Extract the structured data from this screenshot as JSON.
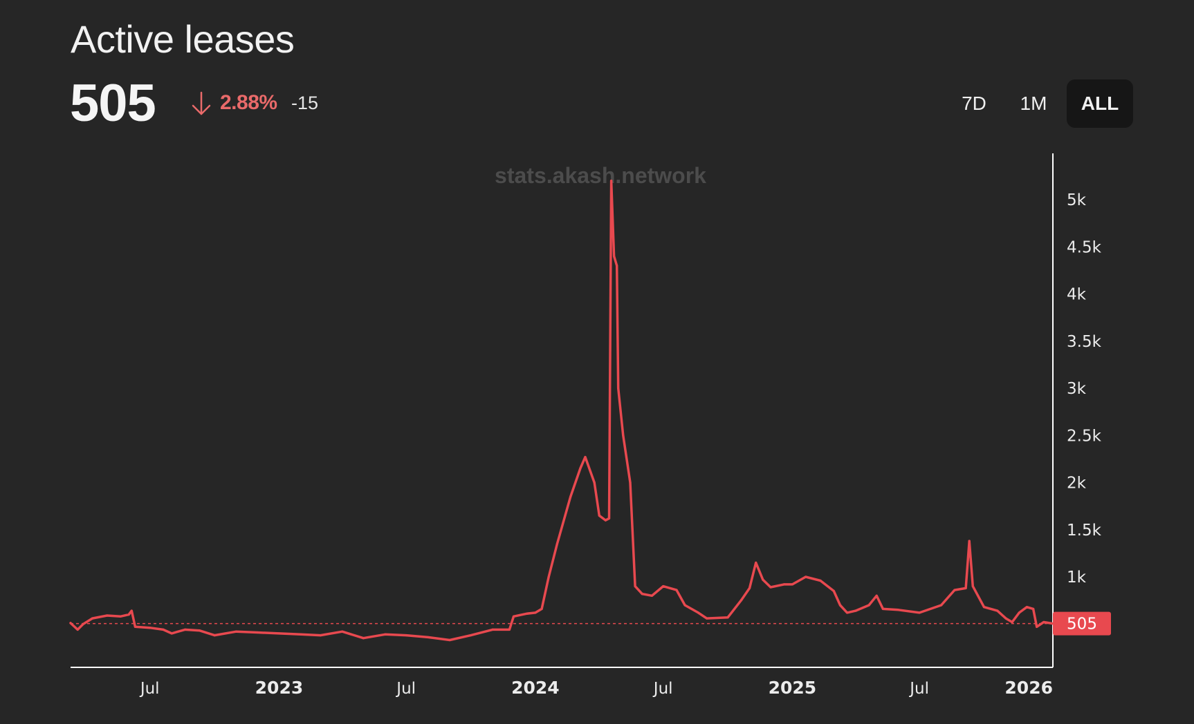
{
  "header": {
    "title": "Active leases",
    "value": "505",
    "delta_pct": "2.88%",
    "delta_abs": "-15",
    "delta_direction": "down"
  },
  "ranges": [
    {
      "label": "7D",
      "active": false
    },
    {
      "label": "1M",
      "active": false
    },
    {
      "label": "ALL",
      "active": true
    }
  ],
  "watermark": "stats.akash.network",
  "colors": {
    "background": "#262626",
    "line": "#e8494f",
    "delta": "#e96a6a",
    "badge": "#e8494f"
  },
  "chart_data": {
    "type": "line",
    "title": "",
    "xlabel": "",
    "ylabel": "",
    "ylim": [
      0,
      5400
    ],
    "y_ticks": [
      {
        "value": 1000,
        "label": "1k"
      },
      {
        "value": 1500,
        "label": "1.5k"
      },
      {
        "value": 2000,
        "label": "2k"
      },
      {
        "value": 2500,
        "label": "2.5k"
      },
      {
        "value": 3000,
        "label": "3k"
      },
      {
        "value": 3500,
        "label": "3.5k"
      },
      {
        "value": 4000,
        "label": "4k"
      },
      {
        "value": 4500,
        "label": "4.5k"
      },
      {
        "value": 5000,
        "label": "5k"
      }
    ],
    "x_ticks": [
      {
        "date": "2022-07-01",
        "label": "Jul",
        "major": false
      },
      {
        "date": "2023-01-01",
        "label": "2023",
        "major": true
      },
      {
        "date": "2023-07-01",
        "label": "Jul",
        "major": false
      },
      {
        "date": "2024-01-01",
        "label": "2024",
        "major": true
      },
      {
        "date": "2024-07-01",
        "label": "Jul",
        "major": false
      },
      {
        "date": "2025-01-01",
        "label": "2025",
        "major": true
      },
      {
        "date": "2025-07-01",
        "label": "Jul",
        "major": false
      },
      {
        "date": "2026-01-01",
        "label": "2026",
        "major": true
      }
    ],
    "x_range": [
      "2022-03-10",
      "2026-01-07"
    ],
    "last_value": 505,
    "last_value_label": "505",
    "reference_line": 505,
    "grid": false,
    "series": [
      {
        "points": [
          [
            "2022-03-10",
            510
          ],
          [
            "2022-03-20",
            440
          ],
          [
            "2022-03-28",
            500
          ],
          [
            "2022-04-10",
            560
          ],
          [
            "2022-05-01",
            590
          ],
          [
            "2022-05-20",
            580
          ],
          [
            "2022-06-01",
            600
          ],
          [
            "2022-06-05",
            640
          ],
          [
            "2022-06-10",
            470
          ],
          [
            "2022-07-01",
            460
          ],
          [
            "2022-07-20",
            440
          ],
          [
            "2022-08-01",
            400
          ],
          [
            "2022-08-20",
            440
          ],
          [
            "2022-09-10",
            430
          ],
          [
            "2022-10-01",
            380
          ],
          [
            "2022-11-01",
            420
          ],
          [
            "2022-12-01",
            410
          ],
          [
            "2023-01-01",
            400
          ],
          [
            "2023-02-01",
            390
          ],
          [
            "2023-03-01",
            380
          ],
          [
            "2023-04-01",
            420
          ],
          [
            "2023-05-01",
            350
          ],
          [
            "2023-06-01",
            390
          ],
          [
            "2023-07-01",
            380
          ],
          [
            "2023-08-01",
            360
          ],
          [
            "2023-09-01",
            330
          ],
          [
            "2023-10-01",
            380
          ],
          [
            "2023-11-01",
            440
          ],
          [
            "2023-11-25",
            440
          ],
          [
            "2023-12-01",
            580
          ],
          [
            "2023-12-20",
            610
          ],
          [
            "2024-01-01",
            620
          ],
          [
            "2024-01-10",
            660
          ],
          [
            "2024-01-20",
            1000
          ],
          [
            "2024-02-01",
            1350
          ],
          [
            "2024-02-20",
            1850
          ],
          [
            "2024-03-05",
            2150
          ],
          [
            "2024-03-12",
            2270
          ],
          [
            "2024-03-25",
            2000
          ],
          [
            "2024-04-01",
            1650
          ],
          [
            "2024-04-10",
            1600
          ],
          [
            "2024-04-15",
            1620
          ],
          [
            "2024-04-18",
            5200
          ],
          [
            "2024-04-22",
            4400
          ],
          [
            "2024-04-26",
            4300
          ],
          [
            "2024-04-28",
            3000
          ],
          [
            "2024-05-05",
            2500
          ],
          [
            "2024-05-15",
            2000
          ],
          [
            "2024-05-22",
            900
          ],
          [
            "2024-06-01",
            820
          ],
          [
            "2024-06-15",
            800
          ],
          [
            "2024-07-01",
            900
          ],
          [
            "2024-07-20",
            860
          ],
          [
            "2024-08-01",
            700
          ],
          [
            "2024-08-20",
            620
          ],
          [
            "2024-09-01",
            560
          ],
          [
            "2024-10-01",
            570
          ],
          [
            "2024-10-20",
            750
          ],
          [
            "2024-11-01",
            880
          ],
          [
            "2024-11-10",
            1150
          ],
          [
            "2024-11-20",
            970
          ],
          [
            "2024-12-01",
            890
          ],
          [
            "2024-12-20",
            920
          ],
          [
            "2025-01-01",
            920
          ],
          [
            "2025-01-20",
            1000
          ],
          [
            "2025-02-10",
            960
          ],
          [
            "2025-03-01",
            850
          ],
          [
            "2025-03-10",
            700
          ],
          [
            "2025-03-20",
            620
          ],
          [
            "2025-04-01",
            640
          ],
          [
            "2025-04-20",
            700
          ],
          [
            "2025-05-01",
            800
          ],
          [
            "2025-05-10",
            660
          ],
          [
            "2025-06-01",
            650
          ],
          [
            "2025-07-01",
            620
          ],
          [
            "2025-08-01",
            700
          ],
          [
            "2025-08-20",
            860
          ],
          [
            "2025-09-05",
            880
          ],
          [
            "2025-09-10",
            1380
          ],
          [
            "2025-09-15",
            900
          ],
          [
            "2025-10-01",
            680
          ],
          [
            "2025-10-20",
            640
          ],
          [
            "2025-11-01",
            560
          ],
          [
            "2025-11-10",
            520
          ],
          [
            "2025-11-20",
            620
          ],
          [
            "2025-12-01",
            680
          ],
          [
            "2025-12-10",
            660
          ],
          [
            "2025-12-15",
            470
          ],
          [
            "2025-12-25",
            520
          ],
          [
            "2026-01-07",
            505
          ]
        ]
      }
    ]
  }
}
